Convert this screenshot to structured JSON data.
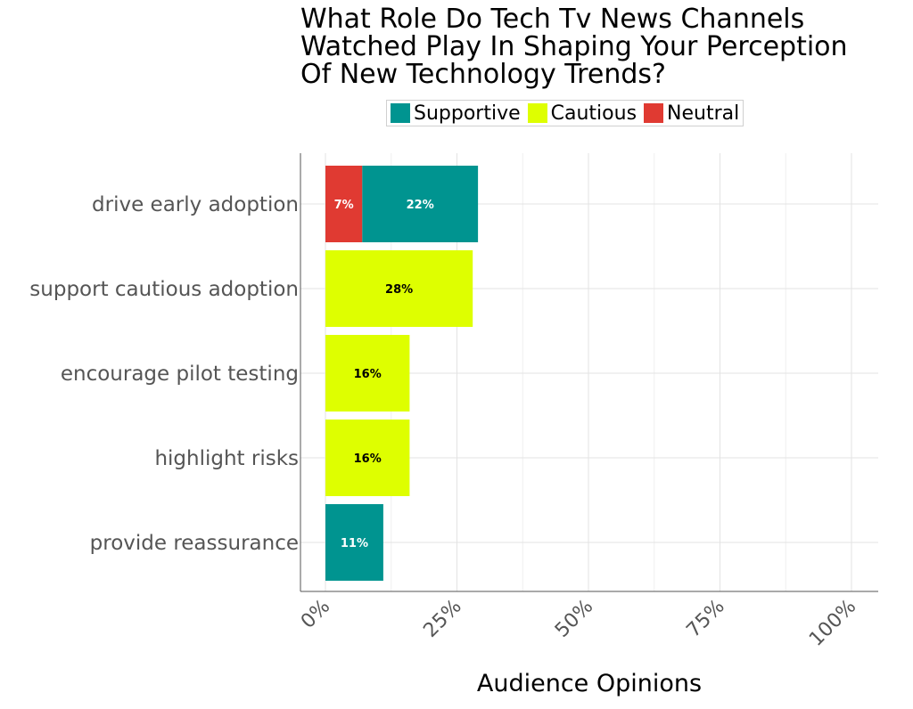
{
  "chart_data": {
    "type": "bar",
    "orientation": "horizontal",
    "stacked": true,
    "title": "What Role Do Tech Tv News Channels\nWatched Play In Shaping Your Perception\nOf New Technology Trends?",
    "xlabel": "Audience Opinions",
    "ylabel": "",
    "xlim": [
      0,
      100
    ],
    "x_ticks": [
      "0%",
      "25%",
      "50%",
      "75%",
      "100%"
    ],
    "x_tick_values": [
      0,
      25,
      50,
      75,
      100
    ],
    "categories": [
      "drive early adoption",
      "support cautious adoption",
      "encourage pilot testing",
      "highlight risks",
      "provide reassurance"
    ],
    "series": [
      {
        "name": "Neutral",
        "color": "#e03a32",
        "values": [
          7,
          0,
          0,
          0,
          0
        ],
        "labels": [
          "7%",
          "",
          "",
          "",
          ""
        ],
        "label_color": "#ffffff"
      },
      {
        "name": "Supportive",
        "color": "#009490",
        "values": [
          22,
          0,
          0,
          0,
          11
        ],
        "labels": [
          "22%",
          "",
          "",
          "",
          "11%"
        ],
        "label_color": "#ffffff"
      },
      {
        "name": "Cautious",
        "color": "#deff00",
        "values": [
          0,
          28,
          16,
          16,
          0
        ],
        "labels": [
          "",
          "28%",
          "16%",
          "16%",
          ""
        ],
        "label_color": "#000000"
      }
    ],
    "legend": {
      "position": "top",
      "entries": [
        {
          "name": "Supportive",
          "color": "#009490"
        },
        {
          "name": "Cautious",
          "color": "#deff00"
        },
        {
          "name": "Neutral",
          "color": "#e03a32"
        }
      ]
    },
    "grid": true
  }
}
